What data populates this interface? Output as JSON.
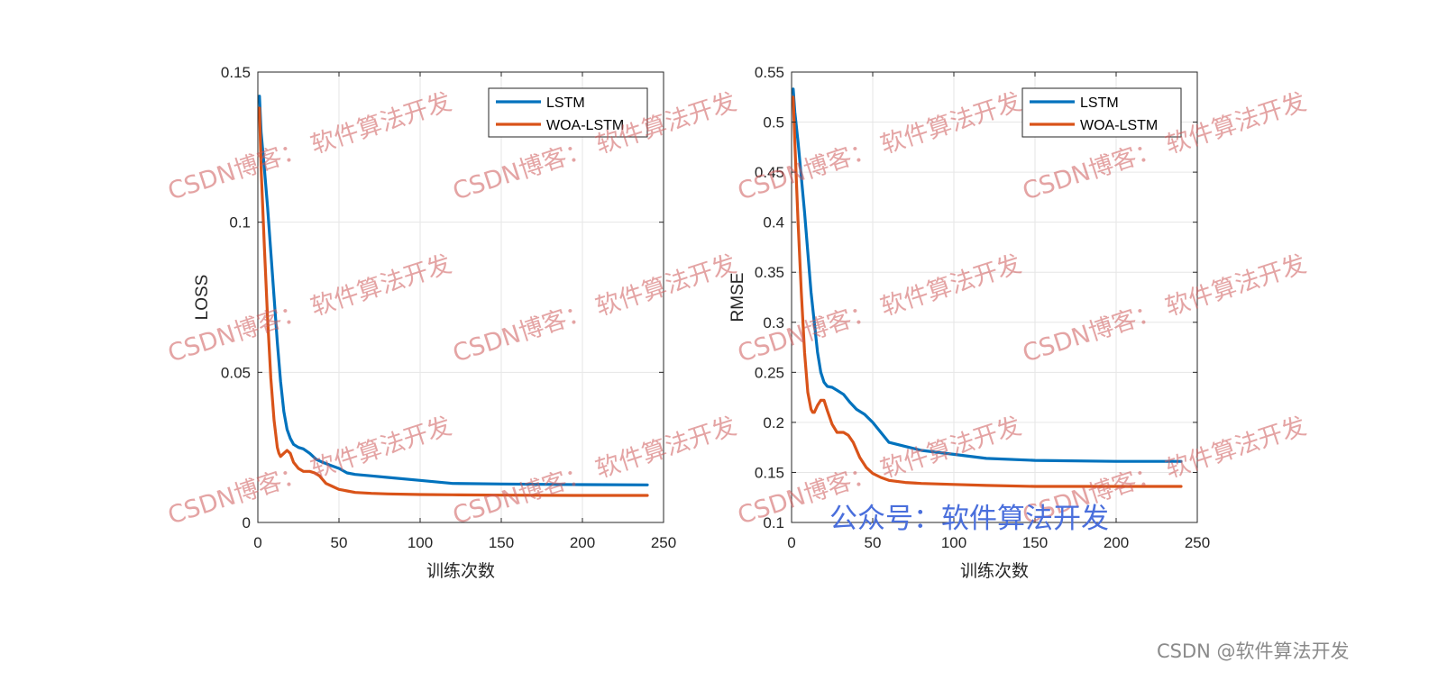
{
  "chart_data": [
    {
      "type": "line",
      "xlabel": "训练次数",
      "ylabel": "LOSS",
      "xlim": [
        0,
        250
      ],
      "ylim": [
        0,
        0.15
      ],
      "xticks": [
        0,
        50,
        100,
        150,
        200,
        250
      ],
      "yticks": [
        0,
        0.05,
        0.1,
        0.15
      ],
      "xtick_labels": [
        "0",
        "50",
        "100",
        "150",
        "200",
        "250"
      ],
      "ytick_labels": [
        "0",
        "0.05",
        "0.1",
        "0.15"
      ],
      "grid": true,
      "legend_position": "top-right",
      "series": [
        {
          "name": "LSTM",
          "color": "#0072bd",
          "x": [
            1,
            2,
            4,
            6,
            8,
            10,
            12,
            14,
            16,
            18,
            20,
            22,
            25,
            28,
            32,
            36,
            40,
            45,
            50,
            55,
            60,
            70,
            80,
            100,
            120,
            150,
            200,
            240
          ],
          "y": [
            0.142,
            0.13,
            0.118,
            0.105,
            0.09,
            0.075,
            0.06,
            0.047,
            0.037,
            0.031,
            0.028,
            0.026,
            0.025,
            0.0245,
            0.023,
            0.021,
            0.02,
            0.019,
            0.018,
            0.0165,
            0.016,
            0.0155,
            0.015,
            0.014,
            0.013,
            0.0128,
            0.0126,
            0.0125
          ]
        },
        {
          "name": "WOA-LSTM",
          "color": "#d95319",
          "x": [
            1,
            2,
            4,
            6,
            8,
            10,
            12,
            13,
            14,
            16,
            18,
            20,
            22,
            25,
            28,
            32,
            35,
            38,
            42,
            46,
            50,
            55,
            60,
            70,
            80,
            100,
            120,
            150,
            200,
            240
          ],
          "y": [
            0.138,
            0.118,
            0.092,
            0.068,
            0.048,
            0.034,
            0.025,
            0.023,
            0.022,
            0.023,
            0.024,
            0.023,
            0.02,
            0.018,
            0.017,
            0.017,
            0.0165,
            0.0155,
            0.013,
            0.012,
            0.011,
            0.0105,
            0.01,
            0.0097,
            0.0095,
            0.0093,
            0.0092,
            0.0091,
            0.009,
            0.009
          ]
        }
      ]
    },
    {
      "type": "line",
      "xlabel": "训练次数",
      "ylabel": "RMSE",
      "xlim": [
        0,
        250
      ],
      "ylim": [
        0.1,
        0.55
      ],
      "xticks": [
        0,
        50,
        100,
        150,
        200,
        250
      ],
      "yticks": [
        0.1,
        0.15,
        0.2,
        0.25,
        0.3,
        0.35,
        0.4,
        0.45,
        0.5,
        0.55
      ],
      "xtick_labels": [
        "0",
        "50",
        "100",
        "150",
        "200",
        "250"
      ],
      "ytick_labels": [
        "0.1",
        "0.15",
        "0.2",
        "0.25",
        "0.3",
        "0.35",
        "0.4",
        "0.45",
        "0.5",
        "0.55"
      ],
      "grid": true,
      "legend_position": "top-right",
      "series": [
        {
          "name": "LSTM",
          "color": "#0072bd",
          "x": [
            1,
            2,
            4,
            6,
            8,
            10,
            12,
            14,
            16,
            18,
            20,
            22,
            25,
            28,
            32,
            36,
            40,
            45,
            50,
            55,
            60,
            70,
            80,
            100,
            120,
            150,
            200,
            240
          ],
          "y": [
            0.533,
            0.51,
            0.48,
            0.445,
            0.41,
            0.37,
            0.33,
            0.3,
            0.27,
            0.25,
            0.24,
            0.236,
            0.235,
            0.232,
            0.228,
            0.22,
            0.213,
            0.208,
            0.2,
            0.19,
            0.18,
            0.176,
            0.172,
            0.168,
            0.164,
            0.162,
            0.161,
            0.161
          ]
        },
        {
          "name": "WOA-LSTM",
          "color": "#d95319",
          "x": [
            1,
            2,
            4,
            6,
            8,
            10,
            12,
            13,
            14,
            16,
            18,
            20,
            22,
            25,
            28,
            32,
            35,
            38,
            42,
            46,
            50,
            55,
            60,
            70,
            80,
            100,
            120,
            150,
            200,
            240
          ],
          "y": [
            0.525,
            0.48,
            0.4,
            0.33,
            0.27,
            0.23,
            0.213,
            0.21,
            0.21,
            0.217,
            0.222,
            0.222,
            0.212,
            0.198,
            0.19,
            0.19,
            0.187,
            0.18,
            0.165,
            0.155,
            0.149,
            0.145,
            0.142,
            0.14,
            0.139,
            0.138,
            0.137,
            0.136,
            0.136,
            0.136
          ]
        }
      ]
    }
  ],
  "watermark": {
    "repeat_text": "CSDN博客： 软件算法开发",
    "footer_text": "公众号：软件算法开发",
    "credit": "CSDN @软件算法开发"
  }
}
